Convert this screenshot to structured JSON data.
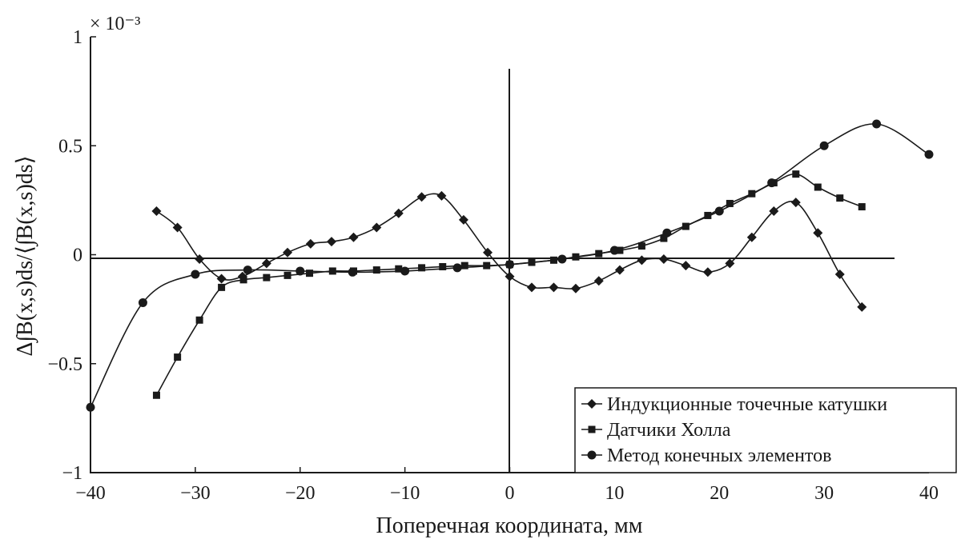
{
  "chart_data": {
    "type": "line",
    "xlabel": "Поперечная координата, мм",
    "ylabel": "Δ∫B(x,s)ds/⟨∫B(x,s)ds⟩",
    "y_multiplier": "× 10⁻³",
    "xlim": [
      -40,
      40
    ],
    "ylim": [
      -1,
      1
    ],
    "x_ticks": [
      -40,
      -30,
      -20,
      -10,
      0,
      10,
      20,
      30,
      40
    ],
    "x_tick_labels": [
      "−40",
      "−30",
      "−20",
      "−10",
      "0",
      "10",
      "20",
      "30",
      "40"
    ],
    "y_ticks": [
      -1,
      -0.5,
      0,
      0.5,
      1
    ],
    "y_tick_labels": [
      "−1",
      "−0.5",
      "0",
      "0.5",
      "1"
    ],
    "grid": false,
    "legend_position": "bottom-right",
    "series": [
      {
        "name": "Индукционные точечные катушки",
        "marker": "diamond",
        "x": [
          -33.7,
          -31.7,
          -29.6,
          -27.5,
          -25.5,
          -23.2,
          -21.2,
          -19.0,
          -17.0,
          -14.9,
          -12.7,
          -10.6,
          -8.4,
          -6.5,
          -4.4,
          -2.1,
          0.0,
          2.1,
          4.2,
          6.3,
          8.5,
          10.5,
          12.6,
          14.7,
          16.8,
          18.9,
          21.0,
          23.1,
          25.2,
          27.3,
          29.4,
          31.5,
          33.6
        ],
        "y": [
          0.2,
          0.125,
          -0.02,
          -0.11,
          -0.1,
          -0.04,
          0.01,
          0.05,
          0.06,
          0.08,
          0.125,
          0.19,
          0.265,
          0.27,
          0.16,
          0.01,
          -0.1,
          -0.15,
          -0.15,
          -0.155,
          -0.12,
          -0.07,
          -0.025,
          -0.02,
          -0.05,
          -0.08,
          -0.04,
          0.08,
          0.2,
          0.24,
          0.1,
          -0.09,
          -0.24
        ]
      },
      {
        "name": "Датчики Холла",
        "marker": "square",
        "x": [
          -33.7,
          -31.7,
          -29.6,
          -27.5,
          -25.4,
          -23.2,
          -21.2,
          -19.1,
          -16.9,
          -14.9,
          -12.7,
          -10.6,
          -8.4,
          -6.4,
          -4.3,
          -2.2,
          0.0,
          2.1,
          4.2,
          6.3,
          8.5,
          10.5,
          12.6,
          14.7,
          16.8,
          18.9,
          21.0,
          23.1,
          25.2,
          27.3,
          29.4,
          31.5,
          33.6
        ],
        "y": [
          -0.645,
          -0.47,
          -0.3,
          -0.15,
          -0.115,
          -0.105,
          -0.095,
          -0.085,
          -0.075,
          -0.075,
          -0.07,
          -0.065,
          -0.06,
          -0.055,
          -0.05,
          -0.05,
          -0.045,
          -0.035,
          -0.025,
          -0.01,
          0.005,
          0.02,
          0.04,
          0.075,
          0.13,
          0.18,
          0.235,
          0.28,
          0.33,
          0.37,
          0.31,
          0.26,
          0.22
        ]
      },
      {
        "name": "Метод конечных элементов",
        "marker": "circle",
        "x": [
          -40,
          -35,
          -30,
          -25,
          -20,
          -15,
          -10,
          -5,
          0,
          5,
          10,
          15,
          20,
          25,
          30,
          35,
          40
        ],
        "y": [
          -0.7,
          -0.22,
          -0.09,
          -0.07,
          -0.075,
          -0.08,
          -0.075,
          -0.06,
          -0.045,
          -0.02,
          0.02,
          0.1,
          0.2,
          0.33,
          0.5,
          0.6,
          0.46
        ]
      }
    ]
  }
}
